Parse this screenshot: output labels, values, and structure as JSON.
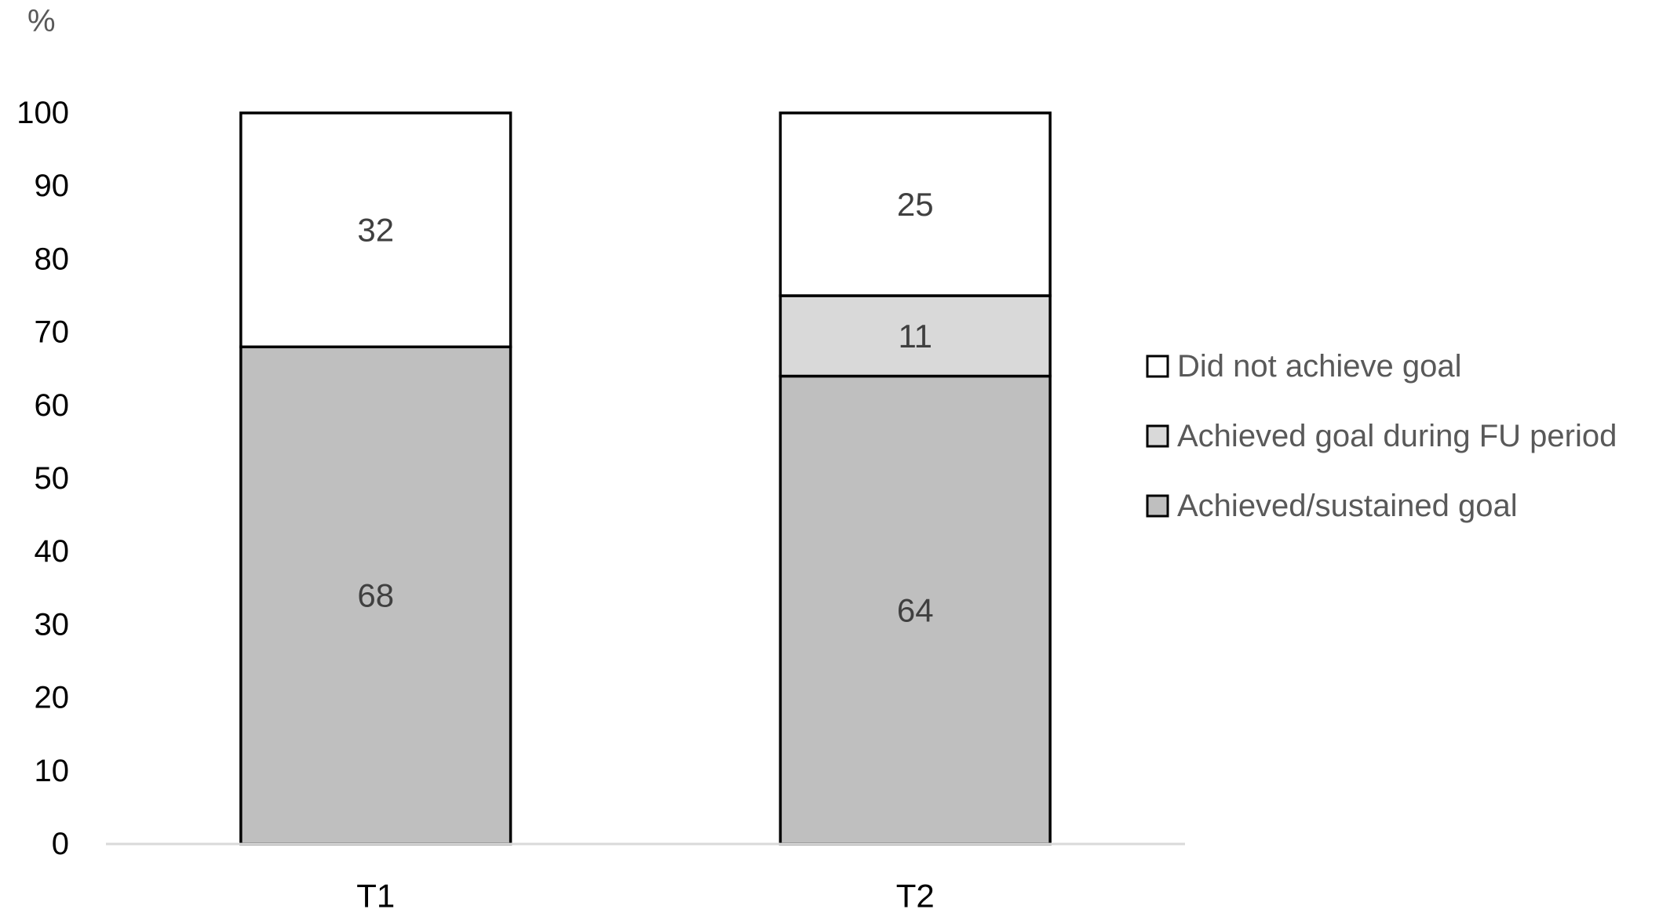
{
  "chart_data": {
    "type": "bar",
    "stacked": true,
    "ylabel": "%",
    "ylim": [
      0,
      100
    ],
    "ytick_step": 10,
    "categories": [
      "T1",
      "T2"
    ],
    "series": [
      {
        "name": "Achieved/sustained goal",
        "values": [
          68,
          64
        ],
        "color": "#bfbfbf"
      },
      {
        "name": "Achieved goal during FU period",
        "values": [
          0,
          11
        ],
        "color": "#d9d9d9"
      },
      {
        "name": "Did not achieve goal",
        "values": [
          32,
          25
        ],
        "color": "#ffffff"
      }
    ],
    "legend_order": [
      "Did not achieve goal",
      "Achieved goal during FU period",
      "Achieved/sustained goal"
    ],
    "legend_position": "right",
    "grid": false,
    "data_labels": true
  }
}
